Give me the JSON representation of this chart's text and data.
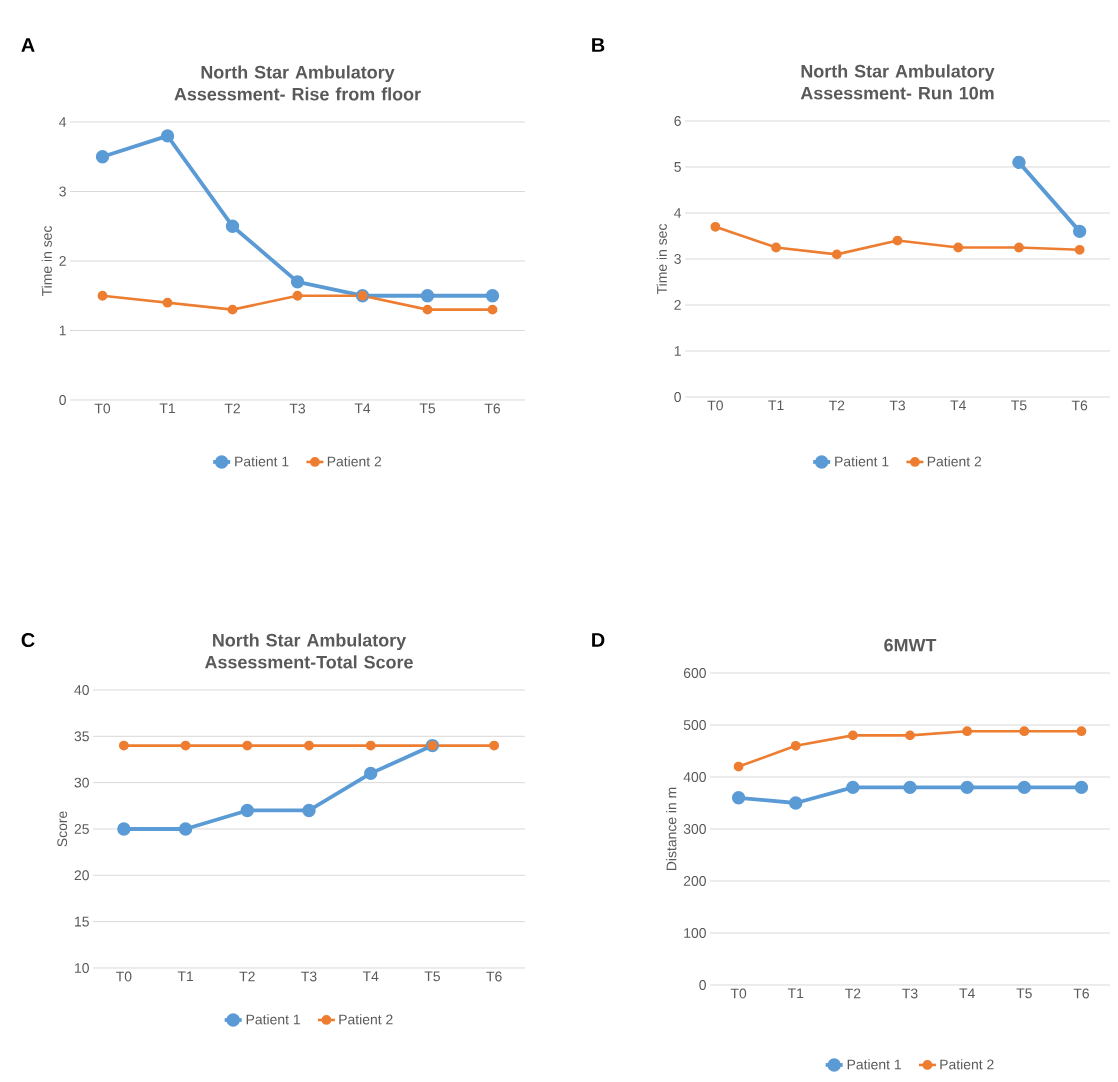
{
  "chart_data": [
    {
      "type": "line",
      "title": "North Star Ambulatory Assessment- Rise from floor",
      "ylabel": "Time in sec",
      "annotations": [
        "A"
      ],
      "categories": [
        "T0",
        "T1",
        "T2",
        "T3",
        "T4",
        "T5",
        "T6"
      ],
      "ylim": [
        0,
        4
      ],
      "yticks": [
        0,
        1,
        2,
        3,
        4
      ],
      "grid": "y",
      "legend": "bottom",
      "marker": "circle",
      "line_style": "solid",
      "series": [
        {
          "name": "Patient 1",
          "color": "#5b9bd5",
          "values": [
            3.5,
            3.8,
            2.5,
            1.7,
            1.5,
            1.5,
            1.5
          ]
        },
        {
          "name": "Patient 2",
          "color": "#ed7d31",
          "values": [
            1.5,
            1.4,
            1.3,
            1.5,
            1.5,
            1.3,
            1.3
          ]
        }
      ]
    },
    {
      "type": "line",
      "title": "North Star Ambulatory Assessment- Run 10m",
      "ylabel": "Time in sec",
      "annotations": [
        "B"
      ],
      "categories": [
        "T0",
        "T1",
        "T2",
        "T3",
        "T4",
        "T5",
        "T6"
      ],
      "ylim": [
        0,
        6
      ],
      "yticks": [
        0,
        1,
        2,
        3,
        4,
        5,
        6
      ],
      "grid": "y",
      "legend": "bottom",
      "marker": "circle",
      "line_style": "solid",
      "series": [
        {
          "name": "Patient 1",
          "color": "#5b9bd5",
          "values": [
            null,
            null,
            null,
            null,
            null,
            5.1,
            3.6
          ]
        },
        {
          "name": "Patient 2",
          "color": "#ed7d31",
          "values": [
            3.7,
            3.25,
            3.1,
            3.4,
            3.25,
            3.25,
            3.2
          ]
        }
      ]
    },
    {
      "type": "line",
      "title": "North Star Ambulatory Assessment-Total Score",
      "ylabel": "Score",
      "annotations": [
        "C"
      ],
      "categories": [
        "T0",
        "T1",
        "T2",
        "T3",
        "T4",
        "T5",
        "T6"
      ],
      "ylim": [
        10,
        40
      ],
      "yticks": [
        10,
        15,
        20,
        25,
        30,
        35,
        40
      ],
      "grid": "y",
      "legend": "bottom",
      "marker": "circle",
      "line_style": "solid",
      "series": [
        {
          "name": "Patient 1",
          "color": "#5b9bd5",
          "values": [
            25,
            25,
            27,
            27,
            31,
            34,
            null
          ]
        },
        {
          "name": "Patient 2",
          "color": "#ed7d31",
          "values": [
            34,
            34,
            34,
            34,
            34,
            34,
            34
          ]
        }
      ]
    },
    {
      "type": "line",
      "title": "6MWT",
      "ylabel": "Distance in m",
      "annotations": [
        "D"
      ],
      "categories": [
        "T0",
        "T1",
        "T2",
        "T3",
        "T4",
        "T5",
        "T6"
      ],
      "ylim": [
        0,
        600
      ],
      "yticks": [
        0,
        100,
        200,
        300,
        400,
        500,
        600
      ],
      "grid": "y",
      "legend": "bottom",
      "marker": "circle",
      "line_style": "solid",
      "series": [
        {
          "name": "Patient 1",
          "color": "#5b9bd5",
          "values": [
            360,
            350,
            380,
            380,
            380,
            380,
            380
          ]
        },
        {
          "name": "Patient 2",
          "color": "#ed7d31",
          "values": [
            420,
            460,
            480,
            480,
            488,
            488,
            488
          ]
        }
      ]
    }
  ]
}
